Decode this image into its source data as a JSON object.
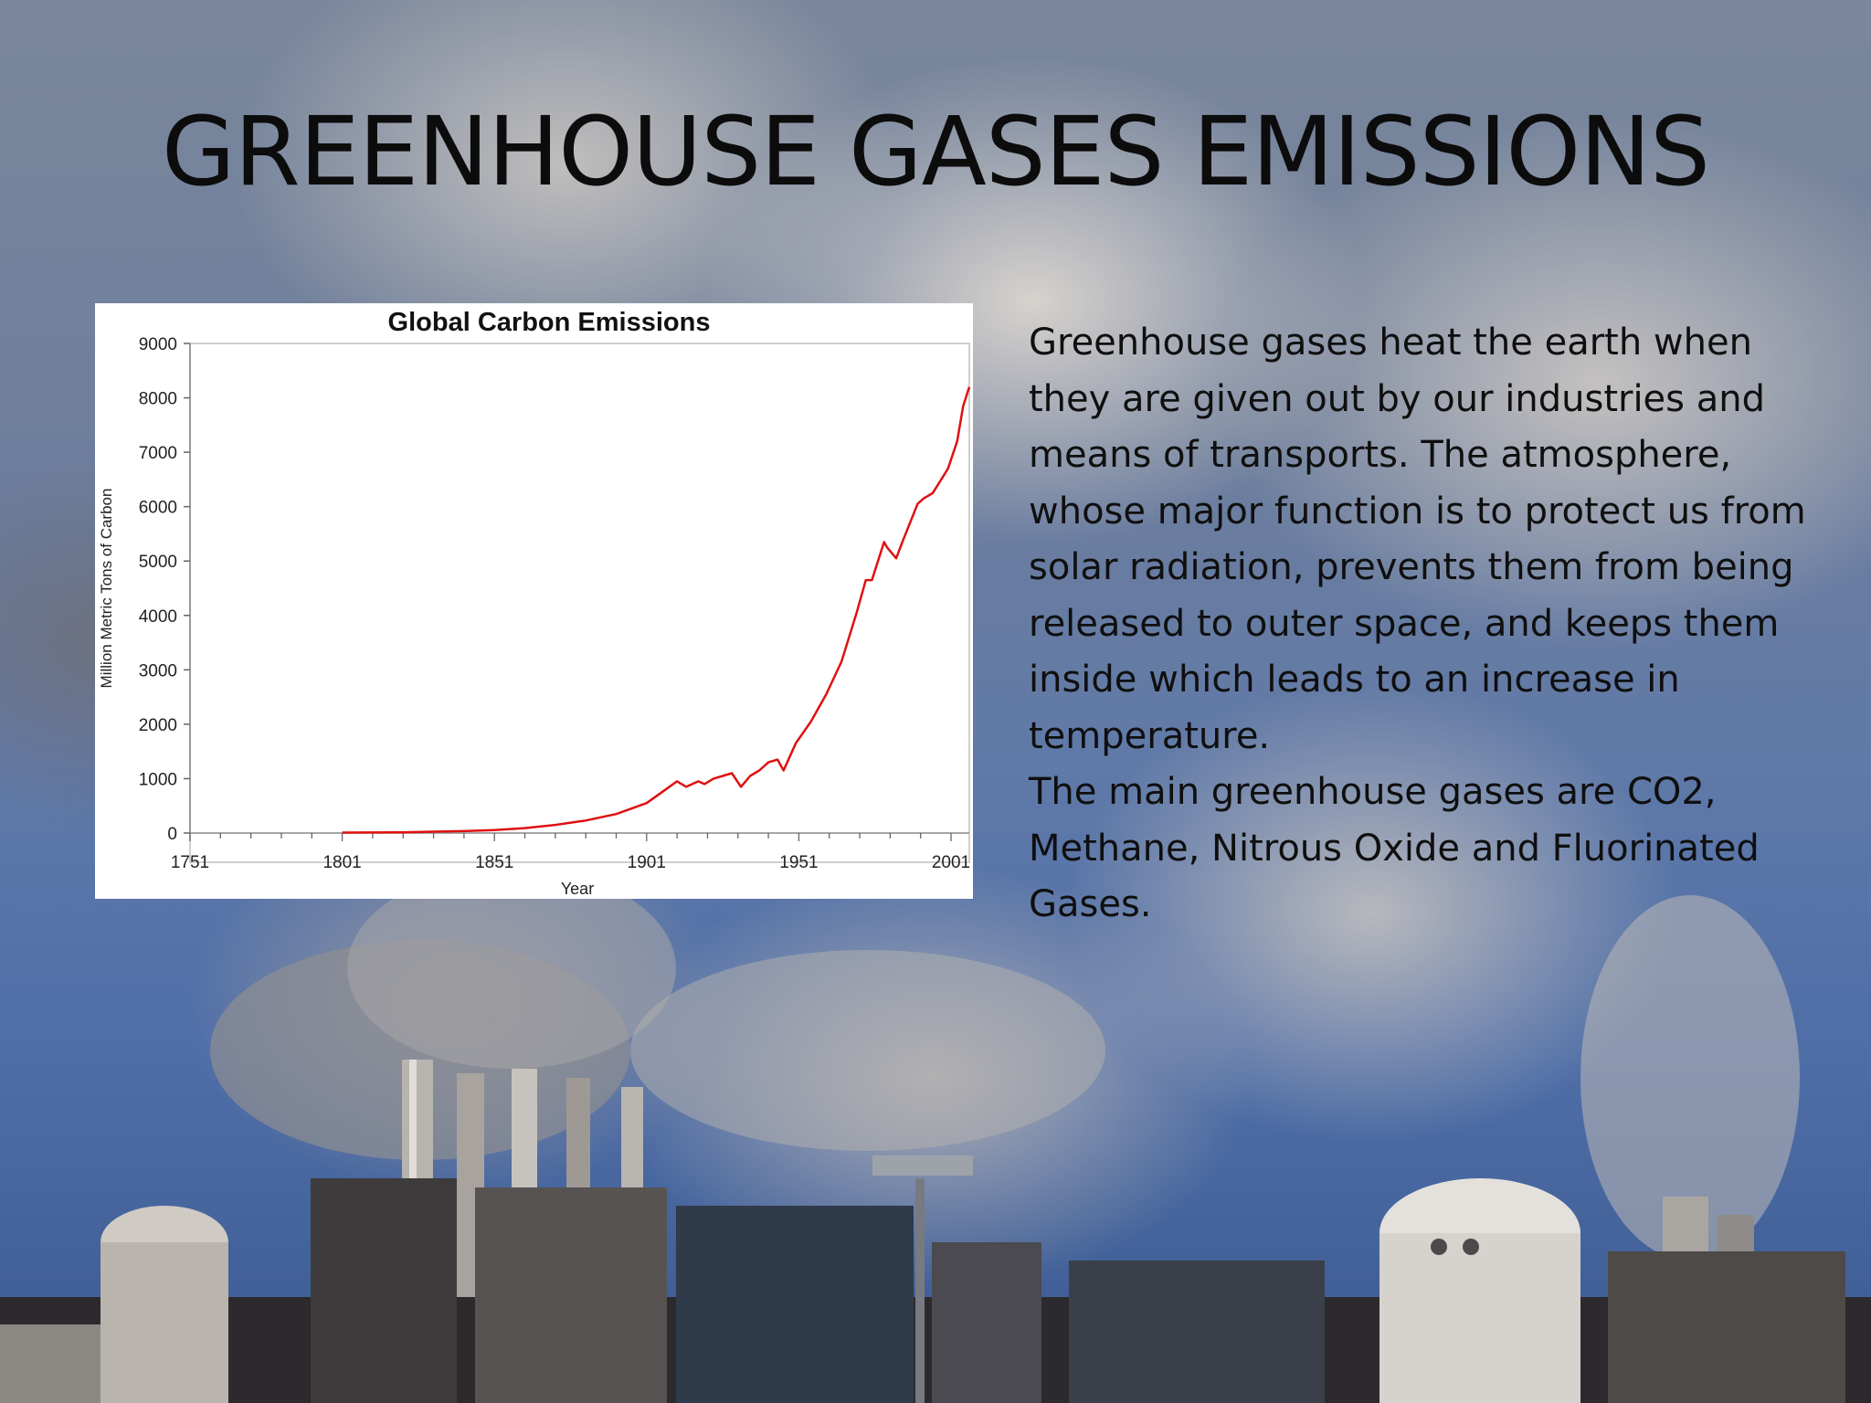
{
  "slide": {
    "title": "GREENHOUSE GASES EMISSIONS",
    "paragraphs": [
      "Greenhouse gases heat the earth when they are given out by our industries and means of transports. The atmosphere, whose major function is to protect us from solar radiation, prevents them from being released to outer space, and keeps them inside which leads to an increase in temperature.",
      "The main greenhouse gases are CO2, Methane, Nitrous Oxide and Fluorinated Gases."
    ],
    "background_image": "industrial smokestacks releasing smoke under a blue sky"
  },
  "chart_data": {
    "type": "line",
    "title": "Global Carbon Emissions",
    "xlabel": "Year",
    "ylabel": "Million Metric Tons of Carbon",
    "xlim": [
      1751,
      2007
    ],
    "ylim": [
      0,
      9000
    ],
    "x_ticks": [
      "1751",
      "1801",
      "1851",
      "1901",
      "1951",
      "2001"
    ],
    "y_ticks": [
      "0",
      "1000",
      "2000",
      "3000",
      "4000",
      "5000",
      "6000",
      "7000",
      "8000",
      "9000"
    ],
    "line_color": "#e01010",
    "grid": false,
    "legend": "none",
    "series": [
      {
        "x": [
          1801,
          1811,
          1821,
          1831,
          1841,
          1851,
          1861,
          1871,
          1881,
          1891,
          1901,
          1906,
          1911,
          1914,
          1918,
          1920,
          1923,
          1926,
          1929,
          1932,
          1935,
          1938,
          1941,
          1944,
          1946,
          1950,
          1955,
          1960,
          1965,
          1970,
          1973,
          1975,
          1979,
          1980,
          1983,
          1985,
          1990,
          1992,
          1995,
          2000,
          2003,
          2005,
          2007
        ],
        "y": [
          8,
          10,
          14,
          25,
          35,
          55,
          90,
          150,
          230,
          350,
          550,
          750,
          950,
          850,
          950,
          900,
          1000,
          1050,
          1100,
          850,
          1050,
          1150,
          1300,
          1350,
          1150,
          1650,
          2050,
          2550,
          3150,
          4050,
          4650,
          4650,
          5350,
          5250,
          5050,
          5350,
          6050,
          6150,
          6250,
          6700,
          7200,
          7850,
          8200
        ]
      }
    ]
  }
}
